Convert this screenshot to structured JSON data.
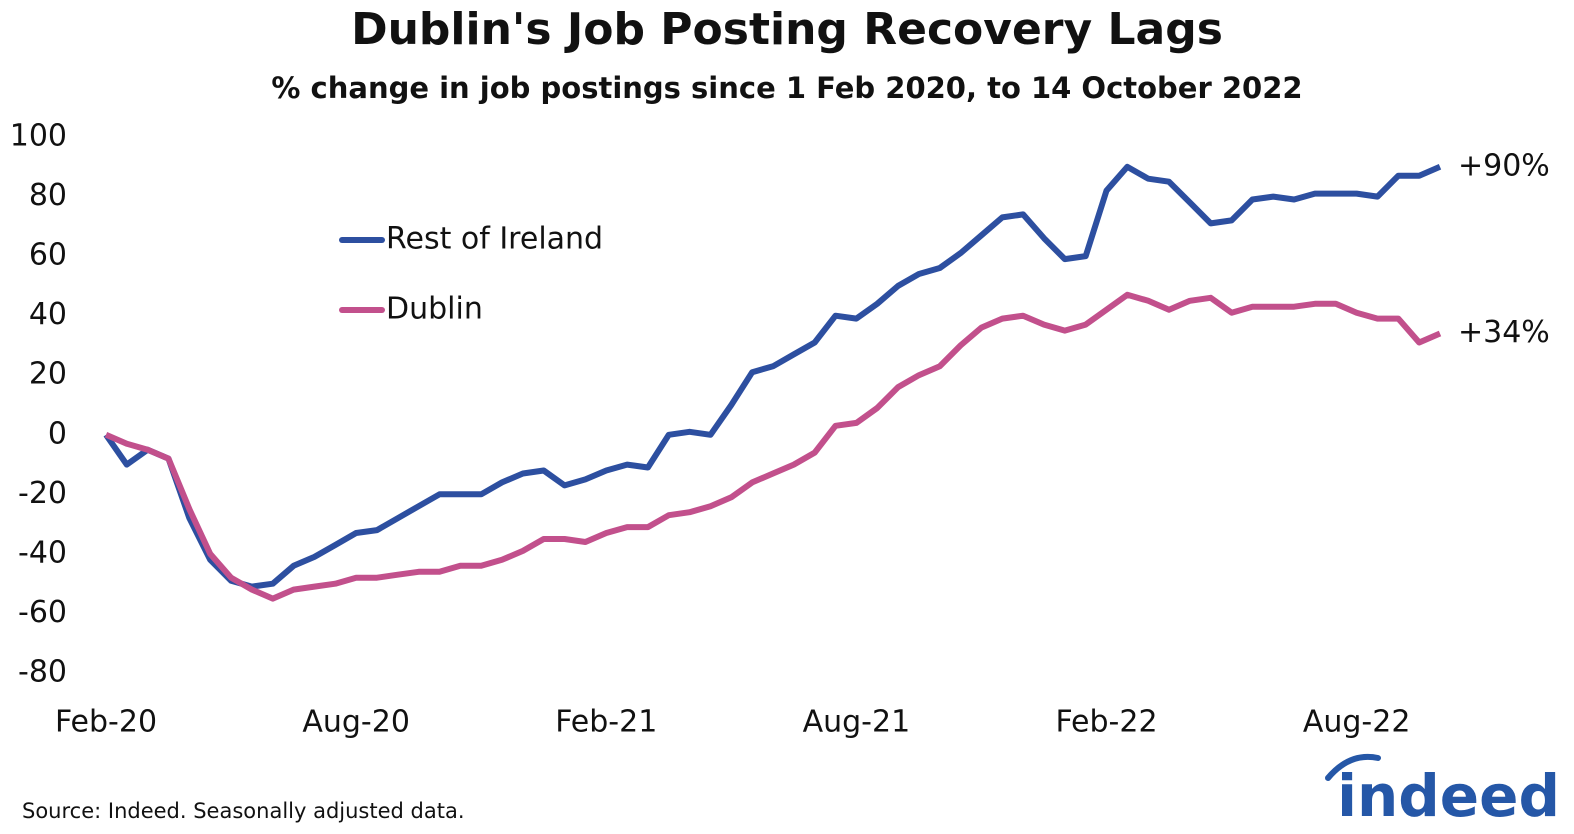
{
  "chart_data": {
    "type": "line",
    "title": "Dublin's Job Posting Recovery Lags",
    "subtitle": "% change in job postings since 1 Feb 2020, to 14 October 2022",
    "categories": [
      "Feb-20",
      null,
      null,
      null,
      null,
      null,
      null,
      null,
      null,
      null,
      null,
      null,
      "Aug-20",
      null,
      null,
      null,
      null,
      null,
      null,
      null,
      null,
      null,
      null,
      null,
      "Feb-21",
      null,
      null,
      null,
      null,
      null,
      null,
      null,
      null,
      null,
      null,
      null,
      "Aug-21",
      null,
      null,
      null,
      null,
      null,
      null,
      null,
      null,
      null,
      null,
      null,
      "Feb-22",
      null,
      null,
      null,
      null,
      null,
      null,
      null,
      null,
      null,
      null,
      null,
      "Aug-22",
      null,
      null,
      null,
      null
    ],
    "series": [
      {
        "name": "Rest of Ireland",
        "color": "#2d4fa0",
        "end_label": "+90%",
        "values": [
          0,
          -10,
          -5,
          -8,
          -28,
          -42,
          -49,
          -51,
          -50,
          -44,
          -41,
          -37,
          -33,
          -32,
          -28,
          -24,
          -20,
          -20,
          -20,
          -16,
          -13,
          -12,
          -17,
          -15,
          -12,
          -10,
          -11,
          0,
          1,
          0,
          10,
          21,
          23,
          27,
          31,
          40,
          39,
          44,
          50,
          54,
          56,
          61,
          67,
          73,
          74,
          66,
          59,
          60,
          82,
          90,
          86,
          85,
          78,
          71,
          72,
          79,
          80,
          79,
          81,
          81,
          81,
          80,
          87,
          87,
          90
        ]
      },
      {
        "name": "Dublin",
        "color": "#c2508c",
        "end_label": "+34%",
        "values": [
          0,
          -3,
          -5,
          -8,
          -25,
          -40,
          -48,
          -52,
          -55,
          -52,
          -51,
          -50,
          -48,
          -48,
          -47,
          -46,
          -46,
          -44,
          -44,
          -42,
          -39,
          -35,
          -35,
          -36,
          -33,
          -31,
          -31,
          -27,
          -26,
          -24,
          -21,
          -16,
          -13,
          -10,
          -6,
          3,
          4,
          9,
          16,
          20,
          23,
          30,
          36,
          39,
          40,
          37,
          35,
          37,
          42,
          47,
          45,
          42,
          45,
          46,
          41,
          43,
          43,
          43,
          44,
          44,
          41,
          39,
          39,
          31,
          34
        ]
      }
    ],
    "ylim": [
      -80,
      100
    ],
    "yticks": [
      -80,
      -60,
      -40,
      -20,
      0,
      20,
      40,
      60,
      80,
      100
    ],
    "grid": false,
    "source": "Source: Indeed. Seasonally adjusted data.",
    "logo": "indeed"
  }
}
